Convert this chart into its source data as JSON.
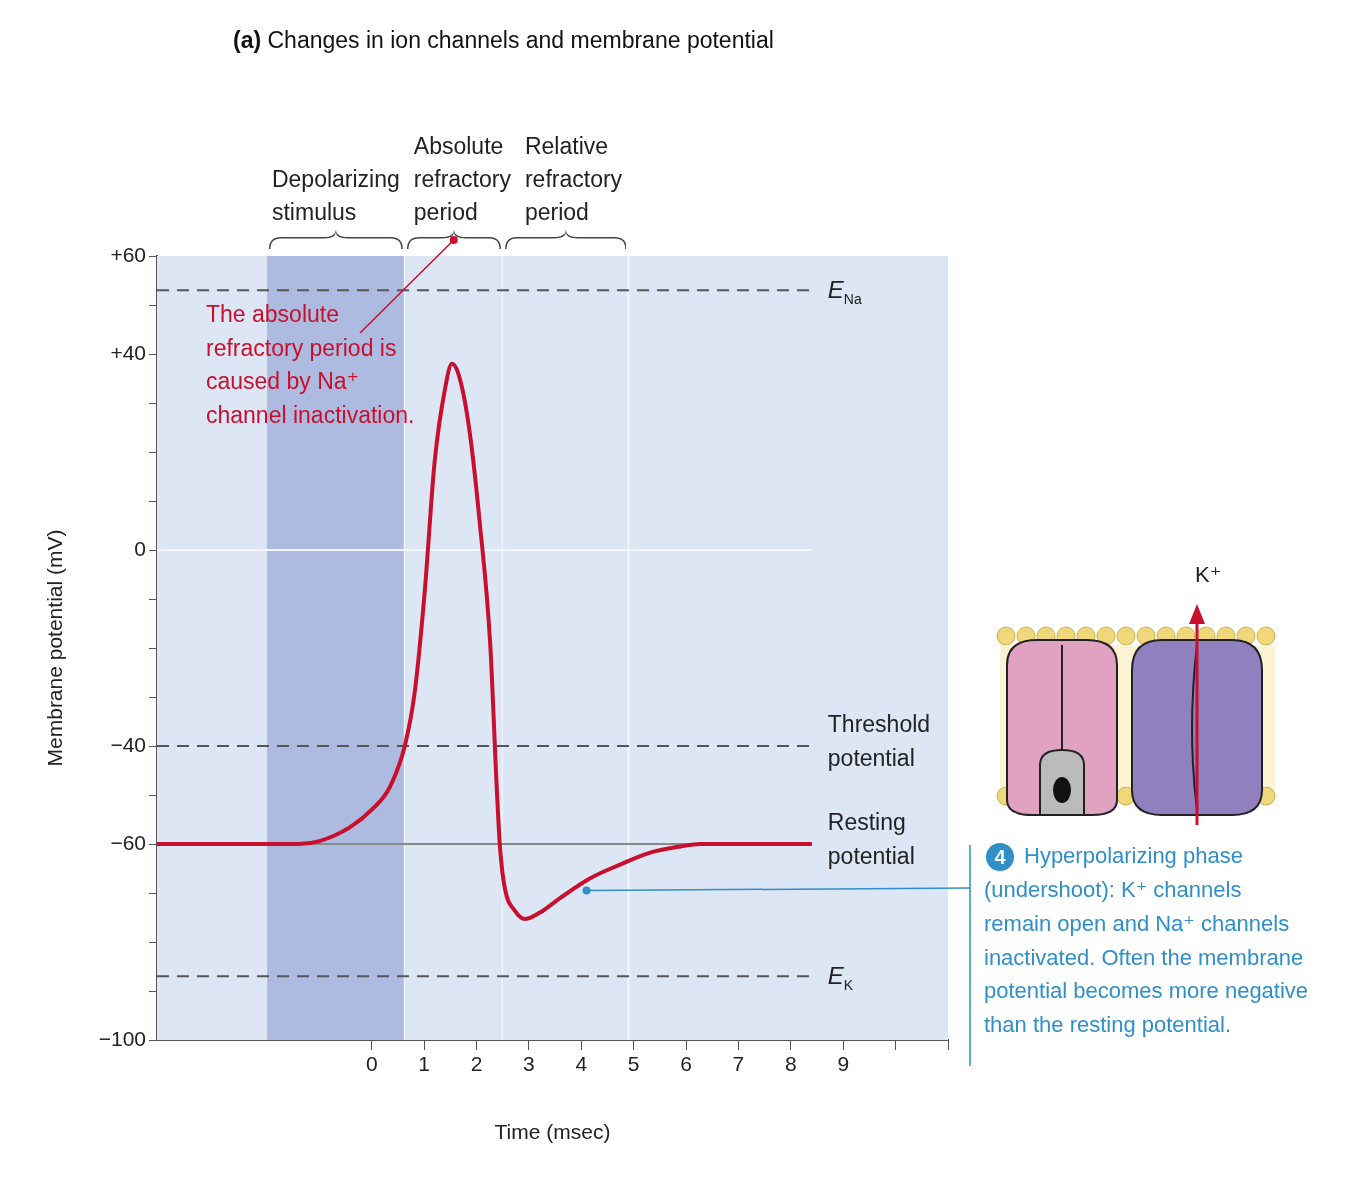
{
  "chart_data": {
    "type": "line",
    "title": "(a) Changes in ion channels and membrane potential",
    "xlabel": "Time (msec)",
    "ylabel": "Membrane potential (mV)",
    "x": [
      -4.1,
      -1.4,
      -1,
      -0.42,
      0,
      0.34,
      0.63,
      0.82,
      1.01,
      1.2,
      1.4,
      1.53,
      1.68,
      1.87,
      2.06,
      2.26,
      2.39,
      2.45,
      2.54,
      2.73,
      2.93,
      3.21,
      3.6,
      4.17,
      4.74,
      5.3,
      5.9,
      6.27,
      8.4
    ],
    "series": [
      {
        "color": "#c8102e",
        "values": [
          -60,
          -60,
          -59.4,
          -56.6,
          -53,
          -48.5,
          -40,
          -29,
          -8.6,
          18,
          33,
          38,
          35,
          24,
          5.7,
          -19,
          -49.5,
          -61,
          -69,
          -73.6,
          -75.3,
          -74,
          -71,
          -67,
          -64.2,
          -61.8,
          -60.5,
          -60,
          -60
        ]
      }
    ],
    "xlim": [
      -4.1,
      11
    ],
    "ylim": [
      -100,
      60
    ],
    "xticks": [
      0,
      1,
      2,
      3,
      4,
      5,
      6,
      7,
      8,
      9,
      {
        "value": 10,
        "label": null
      },
      {
        "value": 11,
        "label": null
      }
    ],
    "yticks": [
      {
        "value": -100,
        "label": "−100"
      },
      {
        "value": -90,
        "label": null
      },
      {
        "value": -80,
        "label": null
      },
      {
        "value": -70,
        "label": null
      },
      {
        "value": -60,
        "label": "−60"
      },
      {
        "value": -50,
        "label": null
      },
      {
        "value": -40,
        "label": "−40"
      },
      {
        "value": -30,
        "label": null
      },
      {
        "value": -20,
        "label": null
      },
      {
        "value": -10,
        "label": null
      },
      0,
      {
        "value": 10,
        "label": null
      },
      {
        "value": 20,
        "label": null
      },
      {
        "value": 30,
        "label": null
      },
      {
        "value": 40,
        "label": "+40"
      },
      {
        "value": 50,
        "label": null
      },
      {
        "value": 60,
        "label": "+60"
      }
    ],
    "bands": [
      {
        "axis": "x",
        "from": -2,
        "to": 0.63,
        "label": "Depolarizing stimulus",
        "color": "#adbbe0"
      },
      {
        "axis": "x",
        "from": 0.63,
        "to": 2.5,
        "label": "Absolute refractory period",
        "color": "#dde6f5"
      },
      {
        "axis": "x",
        "from": 2.5,
        "to": 4.9,
        "label": "Relative refractory period",
        "color": "#dde6f5"
      }
    ],
    "ref_lines": [
      {
        "axis": "y",
        "value": 53,
        "label": "E$_{Na}$",
        "line_style": "dashed",
        "color": "#555555"
      },
      {
        "axis": "y",
        "value": 0,
        "label": null,
        "line_style": "solid",
        "color": "#f4f7fc"
      },
      {
        "axis": "y",
        "value": -40,
        "label": "Threshold potential",
        "line_style": "dashed",
        "color": "#555555"
      },
      {
        "axis": "y",
        "value": -60,
        "label": "Resting potential",
        "line_style": "solid",
        "color": "#888888"
      },
      {
        "axis": "y",
        "value": -87,
        "label": "E$_{K}$",
        "line_style": "dashed",
        "color": "#555555"
      }
    ],
    "annotations": [
      "The absolute refractory period is caused by Na⁺ channel inactivation.",
      {
        "text": "4 Hyperpolarizing phase (undershoot): K⁺ channels remain open and Na⁺ channels inactivated. Often the membrane potential becomes more negative than the resting potential.",
        "x": 4.1,
        "y": -69.5
      },
      "K⁺"
    ],
    "grid": false,
    "legend": false,
    "marker": "none",
    "line_style": "solid"
  }
}
